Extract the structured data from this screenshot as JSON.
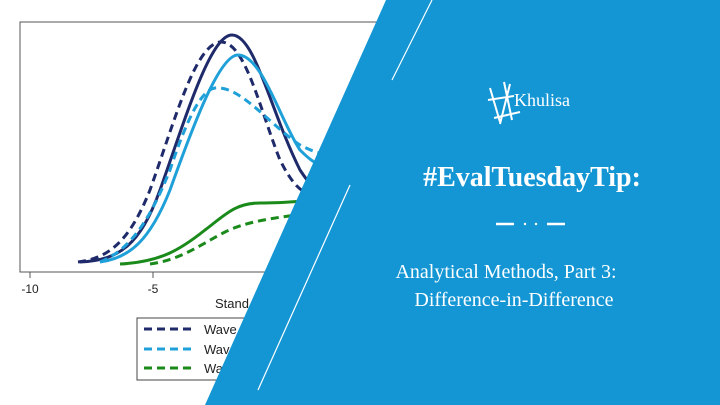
{
  "background_chart": {
    "x_tick_labels": [
      "-10",
      "-5"
    ],
    "x_axis_label": "Stand",
    "legend": [
      "Wave",
      "Wav",
      "Wa"
    ]
  },
  "brand": {
    "name": "Khulisa"
  },
  "banner": {
    "title": "#EvalTuesdayTip:",
    "subtitle_lines": [
      "Analytical Methods, Part 3:",
      "Difference-in-Difference"
    ]
  }
}
